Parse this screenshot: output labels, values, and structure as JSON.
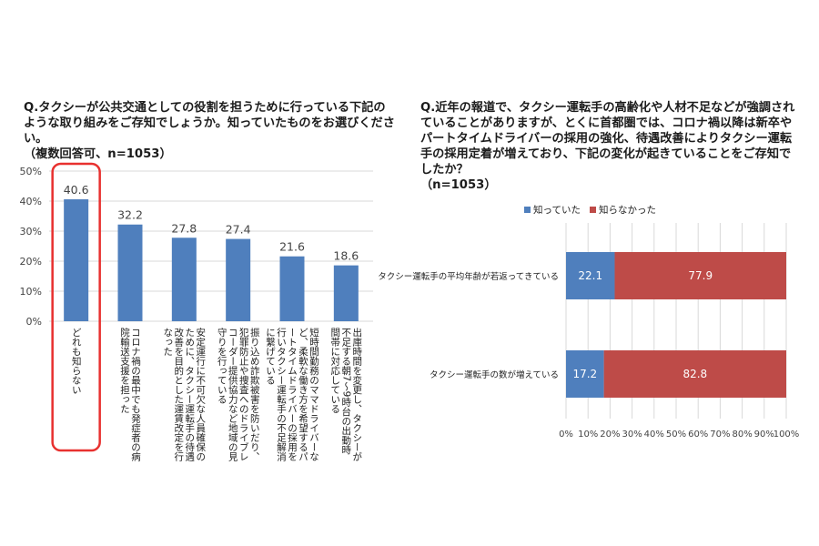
{
  "left_question": "Q.タクシーが公共交通としての役割を担うために行っている下記のような取り組みをご存知でしょうか。知っていたものをお選びください。\n（複数回答可、n=1053）",
  "right_question": "Q.近年の報道で、タクシー運転手の高齢化や人材不足などが強調されていることがありますが、とくに首都圏では、コロナ禍以降は新卒やパートタイムドライバーの採用の強化、待遇改善によりタクシー運転手の採用定着が増えており、下記の変化が起きていることをご存知でしたか？\n（n=1053）",
  "colors": {
    "bar": "#4f7fbd",
    "known": "#4f7fbd",
    "unknown": "#be4b48",
    "highlight": "#e8312f",
    "grid": "#d9d9d9"
  },
  "chart_data": [
    {
      "type": "bar",
      "title": "",
      "xlabel": "",
      "ylabel": "",
      "ylim": [
        0,
        50
      ],
      "yticks": [
        "0%",
        "10%",
        "20%",
        "30%",
        "40%",
        "50%"
      ],
      "categories": [
        "どれも知らない",
        "コロナ禍の最中でも発症者の病院輸送支援を担った",
        "安定運行に不可欠な人員確保のために、タクシー運転手の待遇改善を目的とした運賃改定を行なった",
        "振り込め詐欺被害を防いだり、犯罪防止や捜査へのドライブレコーダー提供協力など地域の見守りを行っている",
        "短時間勤務のママドライバーなど、柔軟な働き方を希望するパートタイムドライバーの採用を行いタクシー運転手の不足解消に繋げている",
        "出庫時間を変更し、タクシーが不足する朝7～9時台の出動時間帯に対応している"
      ],
      "values": [
        40.6,
        32.2,
        27.8,
        27.4,
        21.6,
        18.6
      ],
      "value_labels": [
        "40.6",
        "32.2",
        "27.8",
        "27.4",
        "21.6",
        "18.6"
      ],
      "highlighted_index": 0,
      "grid": true
    },
    {
      "type": "bar",
      "orientation": "horizontal",
      "stacked": true,
      "title": "",
      "legend_position": "top",
      "categories": [
        "タクシー運転手の平均年齢が若返ってきている",
        "タクシー運転手の数が増えている"
      ],
      "series": [
        {
          "name": "知っていた",
          "values": [
            22.1,
            17.2
          ],
          "labels": [
            "22.1",
            "17.2"
          ]
        },
        {
          "name": "知らなかった",
          "values": [
            77.9,
            82.8
          ],
          "labels": [
            "77.9",
            "82.8"
          ]
        }
      ],
      "xlim": [
        0,
        100
      ],
      "xticks": [
        "0%",
        "10%",
        "20%",
        "30%",
        "40%",
        "50%",
        "60%",
        "70%",
        "80%",
        "90%",
        "100%"
      ],
      "grid": true
    }
  ]
}
